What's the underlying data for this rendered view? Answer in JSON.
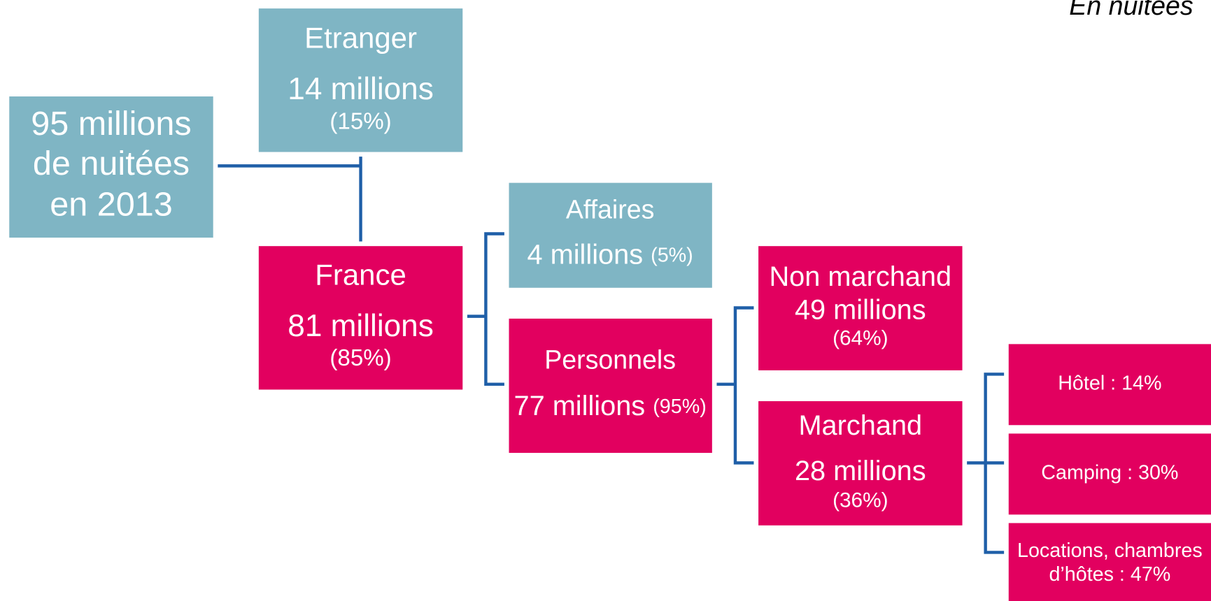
{
  "note_top": "En nuitées",
  "nodes": [
    {
      "lines": [
        "95 millions",
        "de nuitées",
        "en 2013"
      ]
    },
    {
      "title": "Etranger",
      "value": "14 millions",
      "share": "(15%)"
    },
    {
      "title": "France",
      "value": "81 millions",
      "share": "(85%)"
    },
    {
      "title": "Affaires",
      "value": "4 millions",
      "share": "(5%)"
    },
    {
      "title": "Personnels",
      "value": "77 millions",
      "share": "(95%)"
    },
    {
      "title": "Non marchand",
      "value": "49 millions",
      "share": "(64%)"
    },
    {
      "title": "Marchand",
      "value": "28 millions",
      "share": "(36%)"
    },
    {
      "lines": [
        "Hôtel : 14%"
      ]
    },
    {
      "lines": [
        "Camping : 30%"
      ]
    },
    {
      "lines": [
        "Locations, chambres",
        "d’hôtes : 47%"
      ]
    }
  ]
}
